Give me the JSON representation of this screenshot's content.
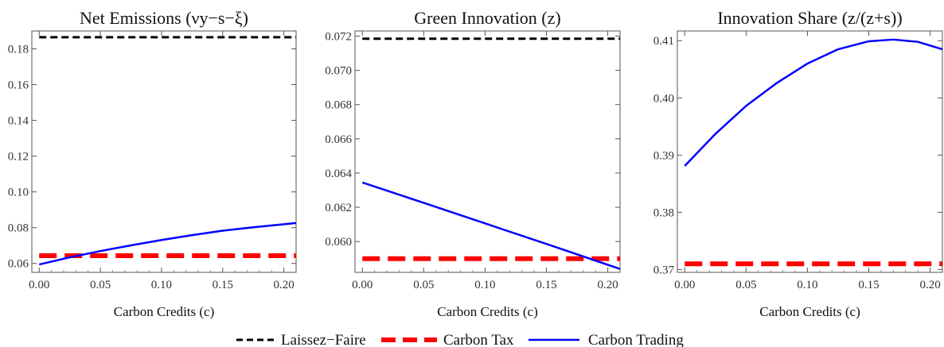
{
  "chart_data": [
    {
      "type": "line",
      "title": "Net Emissions (νy−s−ξ)",
      "xlabel": "Carbon Credits (c)",
      "ylabel": "",
      "xlim": [
        -0.006,
        0.21
      ],
      "ylim": [
        0.055,
        0.19
      ],
      "xticks": [
        0.0,
        0.05,
        0.1,
        0.15,
        0.2
      ],
      "xtick_labels": [
        "0.00",
        "0.05",
        "0.10",
        "0.15",
        "0.20"
      ],
      "yticks": [
        0.06,
        0.08,
        0.1,
        0.12,
        0.14,
        0.16,
        0.18
      ],
      "ytick_labels": [
        "0.06",
        "0.08",
        "0.10",
        "0.12",
        "0.14",
        "0.16",
        "0.18"
      ],
      "grid": false,
      "series": [
        {
          "name": "Laissez−Faire",
          "x": [
            0.0,
            0.21
          ],
          "y": [
            0.1865,
            0.1865
          ]
        },
        {
          "name": "Carbon Tax",
          "x": [
            0.0,
            0.21
          ],
          "y": [
            0.0643,
            0.0643
          ]
        },
        {
          "name": "Carbon Trading",
          "x": [
            0.0,
            0.025,
            0.05,
            0.075,
            0.1,
            0.125,
            0.15,
            0.175,
            0.21
          ],
          "y": [
            0.0594,
            0.0634,
            0.0669,
            0.0701,
            0.0731,
            0.0758,
            0.0783,
            0.0802,
            0.0826
          ]
        }
      ]
    },
    {
      "type": "line",
      "title": "Green Innovation (z)",
      "xlabel": "Carbon Credits (c)",
      "ylabel": "",
      "xlim": [
        -0.006,
        0.21
      ],
      "ylim": [
        0.0582,
        0.0723
      ],
      "xticks": [
        0.0,
        0.05,
        0.1,
        0.15,
        0.2
      ],
      "xtick_labels": [
        "0.00",
        "0.05",
        "0.10",
        "0.15",
        "0.20"
      ],
      "yticks": [
        0.06,
        0.062,
        0.064,
        0.066,
        0.068,
        0.07,
        0.072
      ],
      "ytick_labels": [
        "0.060",
        "0.062",
        "0.064",
        "0.066",
        "0.068",
        "0.070",
        "0.072"
      ],
      "grid": false,
      "series": [
        {
          "name": "Laissez−Faire",
          "x": [
            0.0,
            0.21
          ],
          "y": [
            0.07185,
            0.07185
          ]
        },
        {
          "name": "Carbon Tax",
          "x": [
            0.0,
            0.21
          ],
          "y": [
            0.059,
            0.059
          ]
        },
        {
          "name": "Carbon Trading",
          "x": [
            0.0,
            0.05,
            0.1,
            0.15,
            0.21
          ],
          "y": [
            0.06345,
            0.06226,
            0.06106,
            0.05986,
            0.0584
          ]
        }
      ]
    },
    {
      "type": "line",
      "title": "Innovation Share (z/(z+s))",
      "xlabel": "Carbon Credits (c)",
      "ylabel": "",
      "xlim": [
        -0.006,
        0.21
      ],
      "ylim": [
        0.3695,
        0.4117
      ],
      "xticks": [
        0.0,
        0.05,
        0.1,
        0.15,
        0.2
      ],
      "xtick_labels": [
        "0.00",
        "0.05",
        "0.10",
        "0.15",
        "0.20"
      ],
      "yticks": [
        0.37,
        0.38,
        0.39,
        0.4,
        0.41
      ],
      "ytick_labels": [
        "0.37",
        "0.38",
        "0.39",
        "0.40",
        "0.41"
      ],
      "grid": false,
      "series": [
        {
          "name": "Carbon Tax",
          "x": [
            0.0,
            0.21
          ],
          "y": [
            0.371,
            0.371
          ]
        },
        {
          "name": "Carbon Trading",
          "x": [
            0.0,
            0.025,
            0.05,
            0.075,
            0.1,
            0.125,
            0.15,
            0.17,
            0.19,
            0.21
          ],
          "y": [
            0.3881,
            0.3937,
            0.3986,
            0.4026,
            0.406,
            0.4085,
            0.4099,
            0.4102,
            0.4098,
            0.4085
          ]
        }
      ]
    }
  ],
  "legend": {
    "placement": "bottom",
    "entries": [
      {
        "label": "Laissez−Faire",
        "color": "#000000",
        "style": "dashed-thin"
      },
      {
        "label": "Carbon Tax",
        "color": "#ff0000",
        "style": "dashed-thick"
      },
      {
        "label": "Carbon Trading",
        "color": "#0000ff",
        "style": "solid"
      }
    ]
  },
  "colors": {
    "Laissez−Faire": "#000000",
    "Carbon Tax": "#ff0000",
    "Carbon Trading": "#0000ff"
  }
}
